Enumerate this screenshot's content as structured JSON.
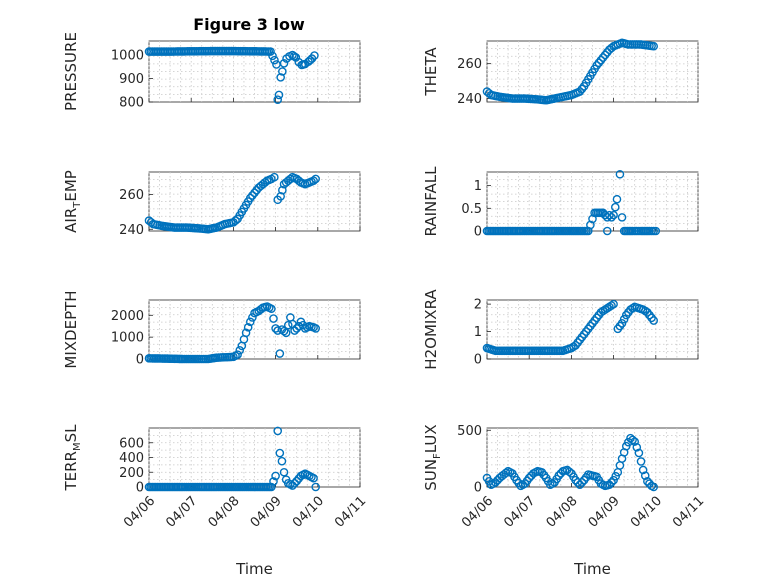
{
  "figure": {
    "title": "Figure 3 low",
    "marker_color": "#0072BD",
    "background": "#ffffff"
  },
  "chart_data": [
    {
      "type": "scatter",
      "ylabel": "PRESSURE",
      "ylim": [
        800,
        1060
      ],
      "yticks": [
        800,
        900,
        1000
      ],
      "xlim": [
        0,
        5
      ],
      "grid": true,
      "title": "Figure 3 low",
      "points": [
        [
          0.0,
          1015
        ],
        [
          0.5,
          1015
        ],
        [
          1.0,
          1016
        ],
        [
          1.5,
          1017
        ],
        [
          2.0,
          1017
        ],
        [
          2.5,
          1016
        ],
        [
          2.88,
          1015
        ],
        [
          3.02,
          960
        ],
        [
          3.05,
          810
        ],
        [
          3.08,
          830
        ],
        [
          3.12,
          905
        ],
        [
          3.16,
          930
        ],
        [
          3.2,
          965
        ],
        [
          3.26,
          985
        ],
        [
          3.33,
          995
        ],
        [
          3.4,
          1000
        ],
        [
          3.48,
          990
        ],
        [
          3.55,
          970
        ],
        [
          3.62,
          958
        ],
        [
          3.7,
          962
        ],
        [
          3.78,
          972
        ],
        [
          3.86,
          985
        ],
        [
          3.92,
          998
        ]
      ]
    },
    {
      "type": "scatter",
      "ylabel": "THETA",
      "ylim": [
        238,
        273
      ],
      "yticks": [
        240,
        260
      ],
      "xlim": [
        0,
        5
      ],
      "grid": true,
      "points": [
        [
          0.0,
          244
        ],
        [
          0.1,
          242
        ],
        [
          0.3,
          241
        ],
        [
          0.6,
          240
        ],
        [
          0.9,
          240
        ],
        [
          1.2,
          239.5
        ],
        [
          1.4,
          239
        ],
        [
          1.6,
          240
        ],
        [
          1.8,
          241
        ],
        [
          2.0,
          242
        ],
        [
          2.1,
          243
        ],
        [
          2.2,
          244
        ],
        [
          2.3,
          247
        ],
        [
          2.4,
          251
        ],
        [
          2.5,
          255
        ],
        [
          2.6,
          259
        ],
        [
          2.7,
          262
        ],
        [
          2.8,
          265
        ],
        [
          2.9,
          268
        ],
        [
          3.0,
          270
        ],
        [
          3.1,
          271
        ],
        [
          3.2,
          272
        ],
        [
          3.35,
          271
        ],
        [
          3.5,
          271
        ],
        [
          3.65,
          271
        ],
        [
          3.8,
          270.5
        ],
        [
          3.95,
          270
        ]
      ]
    },
    {
      "type": "scatter",
      "ylabel": "AIR",
      "ylabel_sub": "T",
      "ylabel_rest": "EMP",
      "ylim": [
        239,
        273
      ],
      "yticks": [
        240,
        260
      ],
      "xlim": [
        0,
        5
      ],
      "grid": true,
      "points": [
        [
          0.0,
          245
        ],
        [
          0.1,
          243
        ],
        [
          0.3,
          242
        ],
        [
          0.6,
          241
        ],
        [
          0.9,
          241
        ],
        [
          1.2,
          240.5
        ],
        [
          1.4,
          240
        ],
        [
          1.6,
          241
        ],
        [
          1.8,
          243
        ],
        [
          2.0,
          244
        ],
        [
          2.1,
          246
        ],
        [
          2.2,
          250
        ],
        [
          2.3,
          254
        ],
        [
          2.4,
          258
        ],
        [
          2.5,
          261
        ],
        [
          2.6,
          264
        ],
        [
          2.7,
          266
        ],
        [
          2.8,
          268
        ],
        [
          2.9,
          269
        ],
        [
          2.97,
          270
        ],
        [
          3.05,
          257
        ],
        [
          3.12,
          259
        ],
        [
          3.2,
          266
        ],
        [
          3.3,
          268
        ],
        [
          3.4,
          270
        ],
        [
          3.5,
          269
        ],
        [
          3.6,
          267
        ],
        [
          3.7,
          266
        ],
        [
          3.8,
          267
        ],
        [
          3.9,
          268
        ],
        [
          3.95,
          269
        ]
      ]
    },
    {
      "type": "scatter",
      "ylabel": "RAINFALL",
      "ylim": [
        0,
        1.3
      ],
      "yticks": [
        0,
        0.5,
        1
      ],
      "ytick_labels": [
        "0",
        "0.5",
        "1"
      ],
      "xlim": [
        0,
        5
      ],
      "grid": true,
      "points": [
        [
          0.0,
          0
        ],
        [
          0.4,
          0
        ],
        [
          0.8,
          0
        ],
        [
          1.2,
          0
        ],
        [
          1.6,
          0
        ],
        [
          2.0,
          0
        ],
        [
          2.4,
          0
        ],
        [
          2.85,
          0
        ],
        [
          2.55,
          0.4
        ],
        [
          2.75,
          0.4
        ],
        [
          2.8,
          0.35
        ],
        [
          2.85,
          0.3
        ],
        [
          2.9,
          0.35
        ],
        [
          2.95,
          0.3
        ],
        [
          3.0,
          0.35
        ],
        [
          3.08,
          0.7
        ],
        [
          3.15,
          1.25
        ],
        [
          3.2,
          0.3
        ],
        [
          3.25,
          0
        ],
        [
          3.45,
          0
        ],
        [
          3.65,
          0
        ],
        [
          3.85,
          0
        ],
        [
          4.0,
          0
        ]
      ]
    },
    {
      "type": "scatter",
      "ylabel": "MIXDEPTH",
      "ylim": [
        0,
        2700
      ],
      "yticks": [
        0,
        1000,
        2000
      ],
      "xlim": [
        0,
        5
      ],
      "grid": true,
      "points": [
        [
          0.0,
          30
        ],
        [
          0.4,
          20
        ],
        [
          0.8,
          0
        ],
        [
          1.2,
          0
        ],
        [
          1.4,
          0
        ],
        [
          1.6,
          60
        ],
        [
          1.8,
          80
        ],
        [
          2.0,
          100
        ],
        [
          2.1,
          200
        ],
        [
          2.2,
          600
        ],
        [
          2.3,
          1200
        ],
        [
          2.4,
          1700
        ],
        [
          2.5,
          2100
        ],
        [
          2.6,
          2200
        ],
        [
          2.7,
          2350
        ],
        [
          2.8,
          2400
        ],
        [
          2.9,
          2300
        ],
        [
          3.0,
          1400
        ],
        [
          3.05,
          1300
        ],
        [
          3.1,
          250
        ],
        [
          3.15,
          1350
        ],
        [
          3.25,
          1200
        ],
        [
          3.35,
          1900
        ],
        [
          3.45,
          1300
        ],
        [
          3.55,
          1500
        ],
        [
          3.6,
          1700
        ],
        [
          3.7,
          1400
        ],
        [
          3.8,
          1500
        ],
        [
          3.9,
          1450
        ],
        [
          3.95,
          1400
        ]
      ]
    },
    {
      "type": "scatter",
      "ylabel": "H2OMIXRA",
      "ylim": [
        0,
        2.15
      ],
      "yticks": [
        0,
        1,
        2
      ],
      "xlim": [
        0,
        5
      ],
      "grid": true,
      "points": [
        [
          0.0,
          0.4
        ],
        [
          0.2,
          0.3
        ],
        [
          0.6,
          0.3
        ],
        [
          1.0,
          0.3
        ],
        [
          1.4,
          0.3
        ],
        [
          1.8,
          0.3
        ],
        [
          2.0,
          0.4
        ],
        [
          2.1,
          0.5
        ],
        [
          2.2,
          0.7
        ],
        [
          2.3,
          0.9
        ],
        [
          2.4,
          1.1
        ],
        [
          2.5,
          1.3
        ],
        [
          2.6,
          1.5
        ],
        [
          2.7,
          1.7
        ],
        [
          2.8,
          1.8
        ],
        [
          2.9,
          1.9
        ],
        [
          3.0,
          2.0
        ],
        [
          3.1,
          1.1
        ],
        [
          3.2,
          1.3
        ],
        [
          3.3,
          1.6
        ],
        [
          3.4,
          1.8
        ],
        [
          3.5,
          1.9
        ],
        [
          3.6,
          1.85
        ],
        [
          3.7,
          1.8
        ],
        [
          3.8,
          1.7
        ],
        [
          3.9,
          1.5
        ],
        [
          3.95,
          1.4
        ]
      ]
    },
    {
      "type": "scatter",
      "ylabel": "TERR",
      "ylabel_sub": "M",
      "ylabel_rest": "SL",
      "ylim": [
        0,
        800
      ],
      "yticks": [
        0,
        200,
        400,
        600
      ],
      "xlim": [
        0,
        5
      ],
      "xticks": [
        0,
        1,
        2,
        3,
        4,
        5
      ],
      "xtick_labels": [
        "04/06",
        "04/07",
        "04/08",
        "04/09",
        "04/10",
        "04/11"
      ],
      "xlabel": "Time",
      "grid": true,
      "points": [
        [
          0.0,
          0
        ],
        [
          0.4,
          0
        ],
        [
          0.8,
          0
        ],
        [
          1.2,
          0
        ],
        [
          1.6,
          0
        ],
        [
          2.0,
          0
        ],
        [
          2.4,
          0
        ],
        [
          2.9,
          0
        ],
        [
          3.0,
          150
        ],
        [
          3.05,
          760
        ],
        [
          3.1,
          460
        ],
        [
          3.15,
          350
        ],
        [
          3.2,
          200
        ],
        [
          3.25,
          100
        ],
        [
          3.3,
          50
        ],
        [
          3.4,
          20
        ],
        [
          3.5,
          80
        ],
        [
          3.6,
          150
        ],
        [
          3.7,
          180
        ],
        [
          3.8,
          150
        ],
        [
          3.9,
          120
        ],
        [
          3.95,
          0
        ]
      ]
    },
    {
      "type": "scatter",
      "ylabel": "SUN",
      "ylabel_sub": "F",
      "ylabel_rest": "LUX",
      "ylim": [
        0,
        520
      ],
      "yticks": [
        0,
        500
      ],
      "xlim": [
        0,
        5
      ],
      "xticks": [
        0,
        1,
        2,
        3,
        4,
        5
      ],
      "xtick_labels": [
        "04/06",
        "04/07",
        "04/08",
        "04/09",
        "04/10",
        "04/11"
      ],
      "xlabel": "Time",
      "grid": true,
      "points": [
        [
          0.0,
          80
        ],
        [
          0.1,
          20
        ],
        [
          0.2,
          40
        ],
        [
          0.3,
          80
        ],
        [
          0.4,
          110
        ],
        [
          0.5,
          140
        ],
        [
          0.6,
          120
        ],
        [
          0.7,
          60
        ],
        [
          0.8,
          10
        ],
        [
          0.9,
          30
        ],
        [
          1.0,
          80
        ],
        [
          1.1,
          120
        ],
        [
          1.2,
          140
        ],
        [
          1.3,
          130
        ],
        [
          1.4,
          80
        ],
        [
          1.5,
          20
        ],
        [
          1.6,
          40
        ],
        [
          1.7,
          100
        ],
        [
          1.8,
          140
        ],
        [
          1.9,
          150
        ],
        [
          2.0,
          120
        ],
        [
          2.1,
          60
        ],
        [
          2.2,
          20
        ],
        [
          2.3,
          60
        ],
        [
          2.4,
          110
        ],
        [
          2.5,
          100
        ],
        [
          2.6,
          90
        ],
        [
          2.7,
          30
        ],
        [
          2.8,
          10
        ],
        [
          2.9,
          20
        ],
        [
          3.0,
          60
        ],
        [
          3.1,
          130
        ],
        [
          3.2,
          250
        ],
        [
          3.3,
          360
        ],
        [
          3.4,
          430
        ],
        [
          3.5,
          400
        ],
        [
          3.6,
          300
        ],
        [
          3.7,
          150
        ],
        [
          3.8,
          50
        ],
        [
          3.9,
          10
        ],
        [
          3.95,
          0
        ]
      ]
    }
  ]
}
